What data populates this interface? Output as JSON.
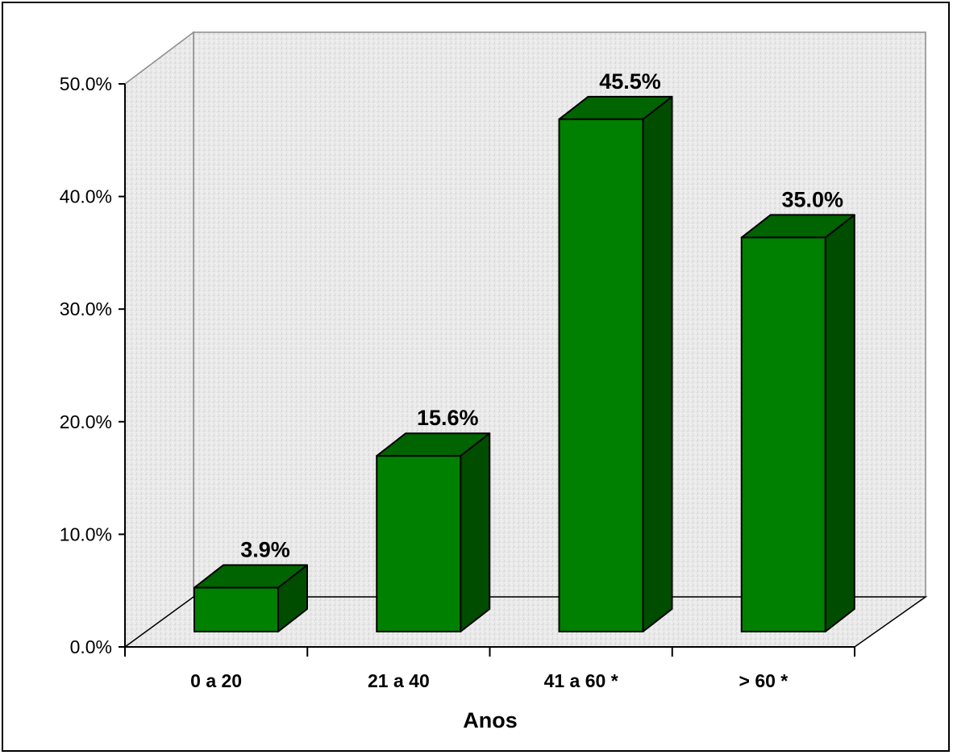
{
  "chart_data": {
    "type": "bar",
    "categories": [
      "0 a 20",
      "21 a 40",
      "41 a 60 *",
      "> 60 *"
    ],
    "values": [
      3.9,
      15.6,
      45.5,
      35.0
    ],
    "data_labels": [
      "3.9%",
      "15.6%",
      "45.5%",
      "35.0%"
    ],
    "ylim": [
      0,
      50
    ],
    "y_ticks": [
      "0.0%",
      "10.0%",
      "20.0%",
      "30.0%",
      "40.0%",
      "50.0%"
    ],
    "xlabel": "Anos",
    "ylabel": "",
    "title": "",
    "style": "3d",
    "grid": false,
    "colors": {
      "bar_front": "#008000",
      "bar_top": "#006400",
      "bar_side": "#004d00",
      "wall": "#e6e6e6"
    }
  }
}
